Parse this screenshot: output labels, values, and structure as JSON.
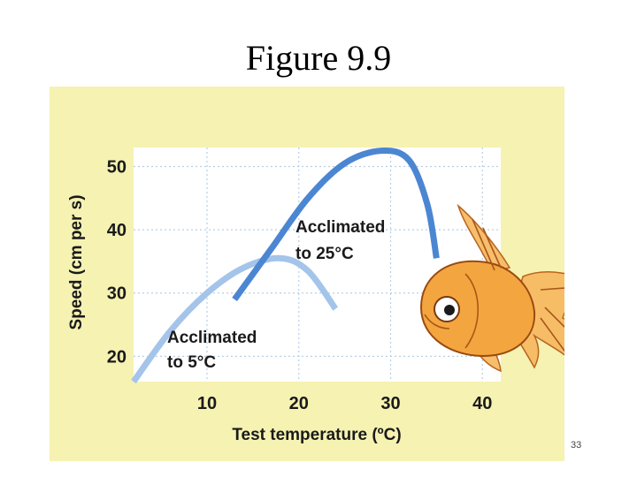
{
  "slide": {
    "title": "Figure 9.9",
    "page_number": "33"
  },
  "colors": {
    "panel_background": "#f6f2b2",
    "plot_background": "#ffffff",
    "grid": "#b5cfe8",
    "curve_25": "#4b86d2",
    "curve_5": "#a4c4ea",
    "text": "#1a1a1a",
    "fish_body": "#f3a63f"
  },
  "icons": {
    "illustration": "goldfish"
  },
  "chart_data": {
    "type": "line",
    "title": "",
    "xlabel": "Test temperature (ºC)",
    "ylabel": "Speed (cm per s)",
    "xlim": [
      2,
      42
    ],
    "ylim": [
      16,
      53
    ],
    "x_ticks": [
      10,
      20,
      30,
      40
    ],
    "y_ticks": [
      20,
      30,
      40,
      50
    ],
    "grid": true,
    "series": [
      {
        "name": "Acclimated to 5°C",
        "label_lines": [
          "Acclimated",
          "to 5°C"
        ],
        "x": [
          2,
          6,
          10,
          14,
          18,
          21,
          24
        ],
        "y": [
          16,
          24,
          30,
          34,
          35.5,
          33.5,
          27.5
        ]
      },
      {
        "name": "Acclimated to 25°C",
        "label_lines": [
          "Acclimated",
          "to 25°C"
        ],
        "x": [
          13,
          17,
          21,
          25,
          29,
          32,
          34,
          35
        ],
        "y": [
          29,
          37,
          45,
          50.5,
          52.5,
          51,
          44,
          35.5
        ]
      }
    ]
  }
}
